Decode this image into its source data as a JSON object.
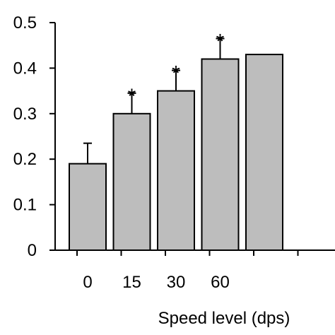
{
  "chart_data": {
    "type": "bar",
    "title": "",
    "xlabel": "Speed level (dps)",
    "ylabel": "",
    "categories": [
      "0",
      "15",
      "30",
      "60",
      ""
    ],
    "values": [
      0.19,
      0.3,
      0.35,
      0.42,
      0.43
    ],
    "errors": [
      0.045,
      0.045,
      0.045,
      0.045,
      0
    ],
    "annotations": [
      "",
      "*",
      "*",
      "*",
      ""
    ],
    "ylim": [
      0,
      0.5
    ],
    "yticks": [
      0,
      0.1,
      0.2,
      0.3,
      0.4,
      0.5
    ],
    "ytick_labels": [
      "0",
      "0.1",
      "0.2",
      "0.3",
      "0.4",
      "0.5"
    ],
    "grid": false,
    "legend": "none",
    "colors": {
      "bar_fill": "#bdbdbd",
      "outline": "#000000"
    }
  }
}
